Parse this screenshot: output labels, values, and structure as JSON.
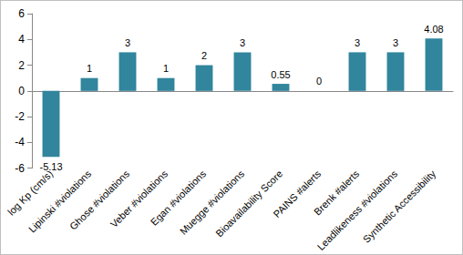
{
  "chart_data": {
    "type": "bar",
    "categories": [
      "log Kp (cm/s)",
      "Lipinski #violations",
      "Ghose #violations",
      "Veber #violations",
      "Egan #violations",
      "Muegge #violations",
      "Bioavailability Score",
      "PAINS #alerts",
      "Brenk #alerts",
      "Leadlikeness #violations",
      "Synthetic Accessibility"
    ],
    "values": [
      -5.13,
      1,
      3,
      1,
      2,
      3,
      0.55,
      0,
      3,
      3,
      4.08
    ],
    "color": "#31859c",
    "ylim": [
      -6,
      6
    ],
    "yticks": [
      -6,
      -4,
      -2,
      0,
      2,
      4,
      6
    ],
    "grid": false,
    "data_labels": true
  }
}
